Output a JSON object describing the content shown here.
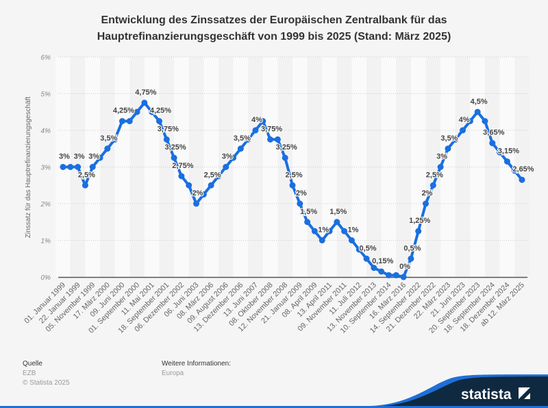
{
  "chart_data": {
    "type": "line",
    "title": "Entwicklung des Zinssatzes der Europäischen Zentralbank für das Hauptrefinanzierungsgeschäft von 1999 bis 2025 (Stand: März 2025)",
    "title_lines": [
      "Entwicklung des Zinssatzes der Europäischen Zentralbank für das",
      "Hauptrefinanzierungsgeschäft von 1999 bis 2025 (Stand: März 2025)"
    ],
    "ylabel": "Zinssatz für das Hauptrefinanzierungsgeschäft",
    "xlabel": "",
    "ylim": [
      0,
      6
    ],
    "yticks": [
      "0%",
      "1%",
      "2%",
      "3%",
      "4%",
      "5%",
      "6%"
    ],
    "grid": true,
    "line_color": "#1a6fe0",
    "categories": [
      "01. Januar 1999",
      "",
      "22. Januar 1999",
      "",
      "05. November 1999",
      "",
      "17. März 2000",
      "",
      "09. Juni 2000",
      "",
      "01. September 2000",
      "",
      "11. Mai 2001",
      "",
      "18. September 2001",
      "",
      "06. Dezember 2002",
      "",
      "06. Juni 2003",
      "",
      "08. März 2006",
      "",
      "09. August 2006",
      "",
      "13. Dezember 2006",
      "",
      "13. Juni 2007",
      "",
      "08. Oktober 2008",
      "",
      "12. November 2008",
      "",
      "21. Januar 2009",
      "",
      "08. April 2009",
      "",
      "13. April 2011",
      "",
      "09. November 2011",
      "",
      "11. Juli 2012",
      "",
      "13. November 2013",
      "",
      "10. September 2014",
      "",
      "16. März 2016",
      "",
      "14. September 2022",
      "",
      "21. Dezember 2022",
      "",
      "22. März 2023",
      "",
      "21. Juni 2023",
      "",
      "20. September 2023",
      "",
      "18. September 2024",
      "",
      "18. Dezember 2024",
      "",
      "ab 12. März 2025"
    ],
    "values": [
      3,
      3,
      3,
      2.5,
      3,
      3.25,
      3.5,
      3.75,
      4.25,
      4.25,
      4.5,
      4.75,
      4.5,
      4.25,
      3.75,
      3.25,
      2.75,
      2.5,
      2,
      2.25,
      2.5,
      2.75,
      3,
      3.25,
      3.5,
      3.75,
      4,
      4.25,
      3.75,
      3.75,
      3.25,
      2.5,
      2,
      1.5,
      1.25,
      1,
      1.25,
      1.5,
      1.25,
      1,
      0.75,
      0.5,
      0.25,
      0.15,
      0.05,
      0.05,
      0,
      0.5,
      1.25,
      2,
      2.5,
      3,
      3.5,
      3.75,
      4,
      4.25,
      4.5,
      4.25,
      3.65,
      3.4,
      3.15,
      2.9,
      2.65
    ],
    "data_labels": [
      "3%",
      "",
      "3%",
      "2,5%",
      "3%",
      "",
      "3,5%",
      "",
      "4,25%",
      "",
      "",
      "4,75%",
      "",
      "4,25%",
      "3,75%",
      "3,25%",
      "2,75%",
      "",
      "2%",
      "",
      "2,5%",
      "",
      "3%",
      "",
      "3,5%",
      "",
      "4%",
      "",
      "3,75%",
      "",
      "3,25%",
      "2,5%",
      "2%",
      "1,5%",
      "",
      "1%",
      "",
      "1,5%",
      "",
      "1%",
      "",
      "0,5%",
      "",
      "0,15%",
      "",
      "",
      "0%",
      "0,5%",
      "1,25%",
      "2%",
      "2,5%",
      "3%",
      "3,5%",
      "",
      "4%",
      "",
      "4,5%",
      "",
      "3,65%",
      "",
      "3,15%",
      "",
      "2,65%"
    ]
  },
  "footer": {
    "source_heading": "Quelle",
    "source": "EZB",
    "copyright": "© Statista 2025",
    "info_heading": "Weitere Informationen:",
    "info": "Europa"
  },
  "logo": {
    "text": "statista",
    "colors": {
      "navy": "#0f2a40",
      "blue": "#1f6fd8"
    }
  }
}
